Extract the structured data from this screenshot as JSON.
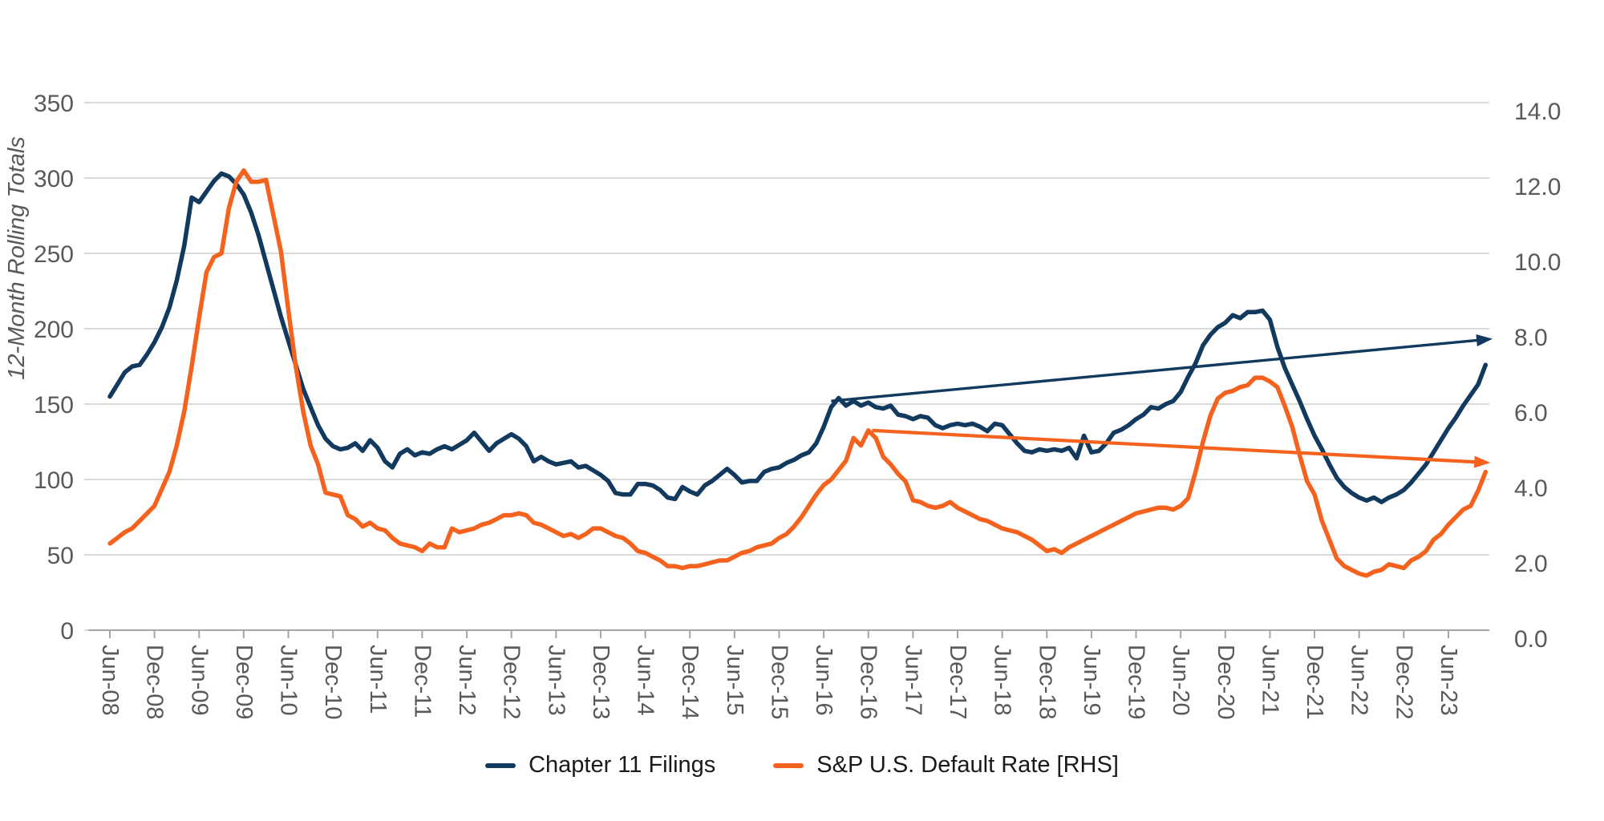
{
  "chart_data": {
    "type": "line",
    "title": "",
    "ylabel_left": "12-Month Rolling Totals",
    "x_start": "Jun-08",
    "x_end": "Nov-23",
    "frequency": "monthly",
    "grid": "horizontal",
    "legend_position": "bottom-center",
    "x_tick_labels": [
      "Jun-08",
      "Dec-08",
      "Jun-09",
      "Dec-09",
      "Jun-10",
      "Dec-10",
      "Jun-11",
      "Dec-11",
      "Jun-12",
      "Dec-12",
      "Jun-13",
      "Dec-13",
      "Jun-14",
      "Dec-14",
      "Jun-15",
      "Dec-15",
      "Jun-16",
      "Dec-16",
      "Jun-17",
      "Dec-17",
      "Jun-18",
      "Dec-18",
      "Jun-19",
      "Dec-19",
      "Jun-20",
      "Dec-20",
      "Jun-21",
      "Dec-21",
      "Jun-22",
      "Dec-22",
      "Jun-23"
    ],
    "left_axis": {
      "min": 0,
      "max": 350,
      "step": 50,
      "tick_labels": [
        "350",
        "300",
        "250",
        "200",
        "150",
        "100",
        "50",
        "0"
      ]
    },
    "right_axis": {
      "min": 0.0,
      "max": 14.0,
      "step": 2.0,
      "tick_labels": [
        "14.0",
        "12.0",
        "10.0",
        "8.0",
        "6.0",
        "4.0",
        "2.0",
        "0.0"
      ]
    },
    "colors": {
      "navy": "#12395E",
      "orange": "#F4621D",
      "gridline": "#DADADA",
      "axis_line": "#A6A6A6",
      "tick_text": "#595959",
      "legend_text": "#1a1a1a"
    },
    "series": [
      {
        "name": "Chapter 11 Filings",
        "axis": "left",
        "color": "#12395E",
        "values": [
          155,
          163,
          171,
          175,
          176,
          183,
          191,
          201,
          214,
          232,
          255,
          287,
          284,
          291,
          298,
          303,
          301,
          296,
          289,
          277,
          262,
          244,
          226,
          208,
          192,
          176,
          160,
          148,
          136,
          127,
          122,
          120,
          121,
          124,
          119,
          126,
          121,
          112,
          108,
          117,
          120,
          116,
          118,
          117,
          120,
          122,
          120,
          123,
          126,
          131,
          125,
          119,
          124,
          127,
          130,
          127,
          122,
          112,
          115,
          112,
          110,
          111,
          112,
          108,
          109,
          106,
          103,
          99,
          91,
          90,
          90,
          97,
          97,
          96,
          93,
          88,
          87,
          95,
          92,
          90,
          96,
          99,
          103,
          107,
          103,
          98,
          99,
          99,
          105,
          107,
          108,
          111,
          113,
          116,
          118,
          124,
          135,
          148,
          154,
          149,
          152,
          149,
          151,
          148,
          147,
          149,
          143,
          142,
          140,
          142,
          141,
          136,
          134,
          136,
          137,
          136,
          137,
          135,
          132,
          137,
          136,
          130,
          124,
          119,
          118,
          120,
          119,
          120,
          119,
          121,
          114,
          129,
          118,
          119,
          124,
          131,
          133,
          136,
          140,
          143,
          148,
          147,
          150,
          152,
          158,
          168,
          177,
          189,
          196,
          201,
          204,
          209,
          207,
          211,
          211,
          212,
          206,
          188,
          174,
          163,
          152,
          140,
          129,
          120,
          110,
          101,
          95,
          91,
          88,
          86,
          88,
          85,
          88,
          90,
          93,
          98,
          104,
          110,
          118,
          126,
          134,
          141,
          149,
          156,
          163,
          176
        ]
      },
      {
        "name": "S&P U.S. Default Rate [RHS]",
        "axis": "right",
        "color": "#F4621D",
        "values": [
          2.3,
          2.45,
          2.6,
          2.7,
          2.9,
          3.1,
          3.3,
          3.75,
          4.2,
          4.9,
          5.8,
          7.0,
          8.3,
          9.5,
          9.9,
          10.0,
          11.2,
          11.9,
          12.2,
          11.9,
          11.9,
          11.95,
          11.0,
          10.05,
          8.5,
          7.0,
          5.8,
          4.9,
          4.4,
          3.65,
          3.6,
          3.55,
          3.05,
          2.95,
          2.75,
          2.85,
          2.7,
          2.65,
          2.45,
          2.3,
          2.25,
          2.2,
          2.1,
          2.3,
          2.2,
          2.2,
          2.7,
          2.6,
          2.65,
          2.7,
          2.8,
          2.85,
          2.95,
          3.05,
          3.05,
          3.1,
          3.05,
          2.85,
          2.8,
          2.7,
          2.6,
          2.5,
          2.55,
          2.45,
          2.55,
          2.7,
          2.7,
          2.6,
          2.5,
          2.45,
          2.3,
          2.1,
          2.05,
          1.95,
          1.85,
          1.7,
          1.7,
          1.65,
          1.7,
          1.7,
          1.75,
          1.8,
          1.85,
          1.85,
          1.95,
          2.05,
          2.1,
          2.2,
          2.25,
          2.3,
          2.45,
          2.55,
          2.75,
          3.0,
          3.3,
          3.6,
          3.85,
          4.0,
          4.25,
          4.5,
          5.1,
          4.9,
          5.3,
          5.1,
          4.6,
          4.4,
          4.15,
          3.95,
          3.45,
          3.4,
          3.3,
          3.25,
          3.3,
          3.4,
          3.25,
          3.15,
          3.05,
          2.95,
          2.9,
          2.8,
          2.7,
          2.65,
          2.6,
          2.5,
          2.4,
          2.25,
          2.1,
          2.15,
          2.05,
          2.2,
          2.3,
          2.4,
          2.5,
          2.6,
          2.7,
          2.8,
          2.9,
          3.0,
          3.1,
          3.15,
          3.2,
          3.25,
          3.25,
          3.2,
          3.3,
          3.5,
          4.2,
          5.0,
          5.7,
          6.15,
          6.3,
          6.35,
          6.45,
          6.5,
          6.7,
          6.7,
          6.6,
          6.45,
          5.95,
          5.4,
          4.65,
          3.95,
          3.6,
          2.9,
          2.4,
          1.9,
          1.7,
          1.6,
          1.5,
          1.45,
          1.55,
          1.6,
          1.75,
          1.7,
          1.65,
          1.85,
          1.95,
          2.1,
          2.4,
          2.55,
          2.8,
          3.0,
          3.2,
          3.3,
          3.7,
          4.2
        ]
      }
    ],
    "annotations": [
      {
        "name": "chapter11-trend-arrow",
        "color": "#12395E",
        "axis": "left",
        "from": {
          "month": 97,
          "value": 152
        },
        "to": {
          "month": 185.3,
          "value": 193
        },
        "width": 3.4
      },
      {
        "name": "default-rate-trend-arrow",
        "color": "#F4621D",
        "axis": "right",
        "from": {
          "month": 102.5,
          "value": 5.3
        },
        "to": {
          "month": 185.0,
          "value": 4.45
        },
        "width": 4.2
      }
    ]
  },
  "legend": {
    "items": [
      {
        "label": "Chapter 11 Filings"
      },
      {
        "label": "S&P U.S. Default Rate [RHS]"
      }
    ]
  }
}
